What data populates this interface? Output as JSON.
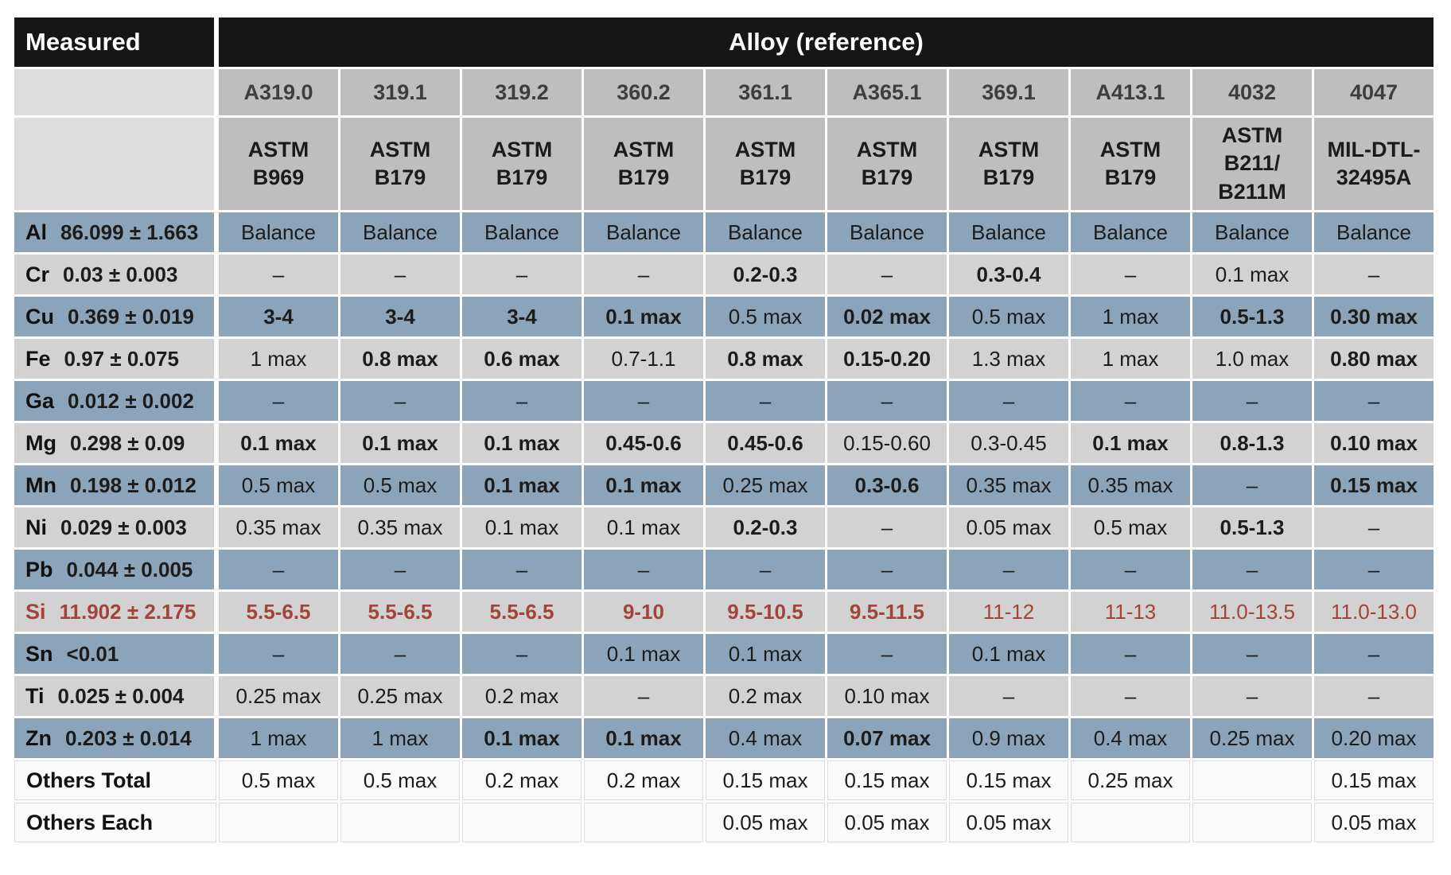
{
  "header": {
    "measured_label": "Measured",
    "alloy_label": "Alloy (reference)"
  },
  "columns": [
    {
      "name": "A319.0",
      "standard": "ASTM\nB969"
    },
    {
      "name": "319.1",
      "standard": "ASTM\nB179"
    },
    {
      "name": "319.2",
      "standard": "ASTM\nB179"
    },
    {
      "name": "360.2",
      "standard": "ASTM\nB179"
    },
    {
      "name": "361.1",
      "standard": "ASTM\nB179"
    },
    {
      "name": "A365.1",
      "standard": "ASTM\nB179"
    },
    {
      "name": "369.1",
      "standard": "ASTM\nB179"
    },
    {
      "name": "A413.1",
      "standard": "ASTM\nB179"
    },
    {
      "name": "4032",
      "standard": "ASTM\nB211/\nB211M"
    },
    {
      "name": "4047",
      "standard": "MIL-DTL-\n32495A"
    }
  ],
  "rows": [
    {
      "element": "Al",
      "measured": "86.099 ± 1.663",
      "tone": "blue",
      "red": false,
      "cells": [
        {
          "t": "Balance",
          "b": false
        },
        {
          "t": "Balance",
          "b": false
        },
        {
          "t": "Balance",
          "b": false
        },
        {
          "t": "Balance",
          "b": false
        },
        {
          "t": "Balance",
          "b": false
        },
        {
          "t": "Balance",
          "b": false
        },
        {
          "t": "Balance",
          "b": false
        },
        {
          "t": "Balance",
          "b": false
        },
        {
          "t": "Balance",
          "b": false
        },
        {
          "t": "Balance",
          "b": false
        }
      ]
    },
    {
      "element": "Cr",
      "measured": "0.03 ± 0.003",
      "tone": "gray",
      "red": false,
      "cells": [
        {
          "t": "–",
          "b": false
        },
        {
          "t": "–",
          "b": false
        },
        {
          "t": "–",
          "b": false
        },
        {
          "t": "–",
          "b": false
        },
        {
          "t": "0.2-0.3",
          "b": true
        },
        {
          "t": "–",
          "b": false
        },
        {
          "t": "0.3-0.4",
          "b": true
        },
        {
          "t": "–",
          "b": false
        },
        {
          "t": "0.1 max",
          "b": false
        },
        {
          "t": "–",
          "b": false
        }
      ]
    },
    {
      "element": "Cu",
      "measured": "0.369 ± 0.019",
      "tone": "blue",
      "red": false,
      "cells": [
        {
          "t": "3-4",
          "b": true
        },
        {
          "t": "3-4",
          "b": true
        },
        {
          "t": "3-4",
          "b": true
        },
        {
          "t": "0.1 max",
          "b": true
        },
        {
          "t": "0.5 max",
          "b": false
        },
        {
          "t": "0.02 max",
          "b": true
        },
        {
          "t": "0.5 max",
          "b": false
        },
        {
          "t": "1 max",
          "b": false
        },
        {
          "t": "0.5-1.3",
          "b": true
        },
        {
          "t": "0.30 max",
          "b": true
        }
      ]
    },
    {
      "element": "Fe",
      "measured": "0.97 ± 0.075",
      "tone": "gray",
      "red": false,
      "cells": [
        {
          "t": "1 max",
          "b": false
        },
        {
          "t": "0.8 max",
          "b": true
        },
        {
          "t": "0.6 max",
          "b": true
        },
        {
          "t": "0.7-1.1",
          "b": false
        },
        {
          "t": "0.8 max",
          "b": true
        },
        {
          "t": "0.15-0.20",
          "b": true
        },
        {
          "t": "1.3 max",
          "b": false
        },
        {
          "t": "1 max",
          "b": false
        },
        {
          "t": "1.0 max",
          "b": false
        },
        {
          "t": "0.80 max",
          "b": true
        }
      ]
    },
    {
      "element": "Ga",
      "measured": "0.012 ± 0.002",
      "tone": "blue",
      "red": false,
      "cells": [
        {
          "t": "–",
          "b": false
        },
        {
          "t": "–",
          "b": false
        },
        {
          "t": "–",
          "b": false
        },
        {
          "t": "–",
          "b": false
        },
        {
          "t": "–",
          "b": false
        },
        {
          "t": "–",
          "b": false
        },
        {
          "t": "–",
          "b": false
        },
        {
          "t": "–",
          "b": false
        },
        {
          "t": "–",
          "b": false
        },
        {
          "t": "–",
          "b": false
        }
      ]
    },
    {
      "element": "Mg",
      "measured": "0.298 ± 0.09",
      "tone": "gray",
      "red": false,
      "cells": [
        {
          "t": "0.1 max",
          "b": true
        },
        {
          "t": "0.1 max",
          "b": true
        },
        {
          "t": "0.1 max",
          "b": true
        },
        {
          "t": "0.45-0.6",
          "b": true
        },
        {
          "t": "0.45-0.6",
          "b": true
        },
        {
          "t": "0.15-0.60",
          "b": false
        },
        {
          "t": "0.3-0.45",
          "b": false
        },
        {
          "t": "0.1 max",
          "b": true
        },
        {
          "t": "0.8-1.3",
          "b": true
        },
        {
          "t": "0.10 max",
          "b": true
        }
      ]
    },
    {
      "element": "Mn",
      "measured": "0.198 ± 0.012",
      "tone": "blue",
      "red": false,
      "cells": [
        {
          "t": "0.5 max",
          "b": false
        },
        {
          "t": "0.5 max",
          "b": false
        },
        {
          "t": "0.1 max",
          "b": true
        },
        {
          "t": "0.1 max",
          "b": true
        },
        {
          "t": "0.25 max",
          "b": false
        },
        {
          "t": "0.3-0.6",
          "b": true
        },
        {
          "t": "0.35 max",
          "b": false
        },
        {
          "t": "0.35 max",
          "b": false
        },
        {
          "t": "–",
          "b": false
        },
        {
          "t": "0.15 max",
          "b": true
        }
      ]
    },
    {
      "element": "Ni",
      "measured": "0.029 ± 0.003",
      "tone": "gray",
      "red": false,
      "cells": [
        {
          "t": "0.35 max",
          "b": false
        },
        {
          "t": "0.35 max",
          "b": false
        },
        {
          "t": "0.1 max",
          "b": false
        },
        {
          "t": "0.1 max",
          "b": false
        },
        {
          "t": "0.2-0.3",
          "b": true
        },
        {
          "t": "–",
          "b": false
        },
        {
          "t": "0.05 max",
          "b": false
        },
        {
          "t": "0.5 max",
          "b": false
        },
        {
          "t": "0.5-1.3",
          "b": true
        },
        {
          "t": "–",
          "b": false
        }
      ]
    },
    {
      "element": "Pb",
      "measured": "0.044 ± 0.005",
      "tone": "blue",
      "red": false,
      "cells": [
        {
          "t": "–",
          "b": false
        },
        {
          "t": "–",
          "b": false
        },
        {
          "t": "–",
          "b": false
        },
        {
          "t": "–",
          "b": false
        },
        {
          "t": "–",
          "b": false
        },
        {
          "t": "–",
          "b": false
        },
        {
          "t": "–",
          "b": false
        },
        {
          "t": "–",
          "b": false
        },
        {
          "t": "–",
          "b": false
        },
        {
          "t": "–",
          "b": false
        }
      ]
    },
    {
      "element": "Si",
      "measured": "11.902 ± 2.175",
      "tone": "gray",
      "red": true,
      "cells": [
        {
          "t": "5.5-6.5",
          "b": true
        },
        {
          "t": "5.5-6.5",
          "b": true
        },
        {
          "t": "5.5-6.5",
          "b": true
        },
        {
          "t": "9-10",
          "b": true
        },
        {
          "t": "9.5-10.5",
          "b": true
        },
        {
          "t": "9.5-11.5",
          "b": true
        },
        {
          "t": "11-12",
          "b": false
        },
        {
          "t": "11-13",
          "b": false
        },
        {
          "t": "11.0-13.5",
          "b": false
        },
        {
          "t": "11.0-13.0",
          "b": false
        }
      ]
    },
    {
      "element": "Sn",
      "measured": "<0.01",
      "tone": "blue",
      "red": false,
      "cells": [
        {
          "t": "–",
          "b": false
        },
        {
          "t": "–",
          "b": false
        },
        {
          "t": "–",
          "b": false
        },
        {
          "t": "0.1 max",
          "b": false
        },
        {
          "t": "0.1 max",
          "b": false
        },
        {
          "t": "–",
          "b": false
        },
        {
          "t": "0.1 max",
          "b": false
        },
        {
          "t": "–",
          "b": false
        },
        {
          "t": "–",
          "b": false
        },
        {
          "t": "–",
          "b": false
        }
      ]
    },
    {
      "element": "Ti",
      "measured": "0.025 ± 0.004",
      "tone": "gray",
      "red": false,
      "cells": [
        {
          "t": "0.25 max",
          "b": false
        },
        {
          "t": "0.25 max",
          "b": false
        },
        {
          "t": "0.2 max",
          "b": false
        },
        {
          "t": "–",
          "b": false
        },
        {
          "t": "0.2 max",
          "b": false
        },
        {
          "t": "0.10 max",
          "b": false
        },
        {
          "t": "–",
          "b": false
        },
        {
          "t": "–",
          "b": false
        },
        {
          "t": "–",
          "b": false
        },
        {
          "t": "–",
          "b": false
        }
      ]
    },
    {
      "element": "Zn",
      "measured": "0.203 ± 0.014",
      "tone": "blue",
      "red": false,
      "cells": [
        {
          "t": "1 max",
          "b": false
        },
        {
          "t": "1 max",
          "b": false
        },
        {
          "t": "0.1 max",
          "b": true
        },
        {
          "t": "0.1 max",
          "b": true
        },
        {
          "t": "0.4 max",
          "b": false
        },
        {
          "t": "0.07 max",
          "b": true
        },
        {
          "t": "0.9 max",
          "b": false
        },
        {
          "t": "0.4 max",
          "b": false
        },
        {
          "t": "0.25 max",
          "b": false
        },
        {
          "t": "0.20 max",
          "b": false
        }
      ]
    }
  ],
  "footer_rows": [
    {
      "label": "Others Total",
      "cells": [
        "0.5 max",
        "0.5 max",
        "0.2 max",
        "0.2 max",
        "0.15 max",
        "0.15 max",
        "0.15 max",
        "0.25 max",
        "",
        "0.15 max"
      ]
    },
    {
      "label": "Others Each",
      "cells": [
        "",
        "",
        "",
        "",
        "0.05 max",
        "0.05 max",
        "0.05 max",
        "",
        "",
        "0.05 max"
      ]
    }
  ],
  "colors": {
    "header_bg": "#161616",
    "header_text": "#FFFFFF",
    "alloy_header_bg": "#BEBEBE",
    "corner_bg": "#DDDDDD",
    "row_blue": "#8CA4BA",
    "row_gray": "#D2D2D2",
    "footer_bg": "#FAFAFA",
    "si_red": "#A3443B",
    "page_bg": "#FFFFFF"
  }
}
